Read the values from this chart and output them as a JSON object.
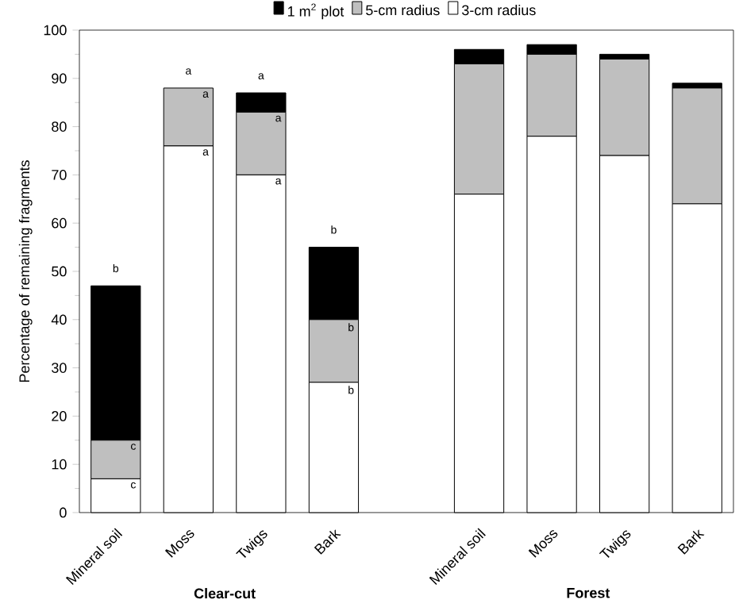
{
  "chart_data": {
    "type": "bar",
    "stacked": true,
    "ylabel": "Percentage of remaining fragments",
    "categories": [
      "Mineral soil",
      "Moss",
      "Twigs",
      "Bark",
      null,
      "Mineral soil",
      "Moss",
      "Twigs",
      "Bark"
    ],
    "series": [
      {
        "name": "3-cm radius",
        "color": "#ffffff",
        "values": [
          7,
          76,
          70,
          27,
          null,
          66,
          78,
          74,
          64
        ]
      },
      {
        "name": "5-cm radius",
        "color": "#bfbfbf",
        "values": [
          8,
          12,
          13,
          13,
          null,
          27,
          17,
          20,
          24
        ]
      },
      {
        "name": "1 m$^{2}$ plot",
        "color": "#000000",
        "values": [
          32,
          0,
          4,
          15,
          null,
          3,
          2,
          1,
          1
        ]
      }
    ],
    "ylim": [
      0,
      100
    ],
    "yticks": [
      0,
      10,
      20,
      30,
      40,
      50,
      60,
      70,
      80,
      90,
      100
    ],
    "legend": "top",
    "grid": false,
    "annotations": [
      "**Clear-cut**",
      "**Forest**",
      {
        "text": "b",
        "x": "Mineral soil",
        "y": 47
      },
      {
        "text": "c",
        "x": "Mineral soil",
        "y": 15
      },
      {
        "text": "c",
        "x": "Mineral soil",
        "y": 7
      },
      {
        "text": "a",
        "x": "Moss",
        "y": 88
      },
      {
        "text": "a",
        "x": "Moss",
        "y": 88
      },
      {
        "text": "a",
        "x": "Moss",
        "y": 76
      },
      {
        "text": "a",
        "x": "Twigs",
        "y": 87
      },
      {
        "text": "a",
        "x": "Twigs",
        "y": 83
      },
      {
        "text": "a",
        "x": "Twigs",
        "y": 70
      },
      {
        "text": "b",
        "x": "Bark",
        "y": 55
      },
      {
        "text": "b",
        "x": "Bark",
        "y": 40
      },
      {
        "text": "b",
        "x": "Bark",
        "y": 27
      }
    ]
  }
}
